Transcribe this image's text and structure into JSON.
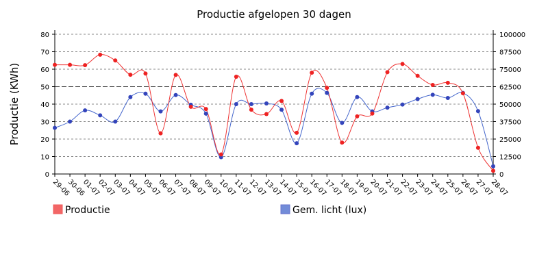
{
  "chart_data": {
    "type": "line",
    "title": "Productie afgelopen 30 dagen",
    "ylabel": "Productie (KWh)",
    "y2label": "",
    "xlabel": "",
    "categories": [
      "29-06",
      "30-06",
      "01-07",
      "02-07",
      "03-07",
      "04-07",
      "05-07",
      "06-07",
      "07-07",
      "08-07",
      "09-07",
      "10-07",
      "11-07",
      "12-07",
      "13-07",
      "14-07",
      "15-07",
      "16-07",
      "17-07",
      "18-07",
      "19-07",
      "20-07",
      "21-07",
      "22-07",
      "23-07",
      "24-07",
      "25-07",
      "26-07",
      "27-07",
      "28-07"
    ],
    "ylim": [
      0,
      80
    ],
    "y2lim": [
      0,
      100000
    ],
    "yticks": [
      "0",
      "10",
      "20",
      "30",
      "40",
      "50",
      "60",
      "70",
      "80"
    ],
    "y2ticks": [
      "0",
      "12500",
      "25000",
      "37500",
      "50000",
      "62500",
      "75000",
      "87500",
      "100000"
    ],
    "grid": true,
    "legend_position": "bottom",
    "series": [
      {
        "name": "Productie",
        "axis": "left",
        "color": "#ee3333",
        "marker_color": "#ee2222",
        "values": [
          62.5,
          62.5,
          62.3,
          68.3,
          65.0,
          56.8,
          57.5,
          23.3,
          56.7,
          38.5,
          37.2,
          11.2,
          55.7,
          36.8,
          34.3,
          41.8,
          23.6,
          58.0,
          49.3,
          18.0,
          33.0,
          34.6,
          58.3,
          63.0,
          56.2,
          51.0,
          52.2,
          46.2,
          15.0,
          1.8
        ]
      },
      {
        "name": "Gem. licht (lux)",
        "axis": "right",
        "color": "#4466cc",
        "marker_color": "#3344bb",
        "values": [
          33000,
          37500,
          45500,
          42000,
          37500,
          55000,
          57500,
          44800,
          56500,
          49600,
          43200,
          12000,
          50000,
          50000,
          50500,
          46000,
          22000,
          57500,
          58000,
          36600,
          55000,
          44800,
          47500,
          49700,
          53600,
          56700,
          54400,
          58000,
          45000,
          5500
        ]
      }
    ]
  }
}
